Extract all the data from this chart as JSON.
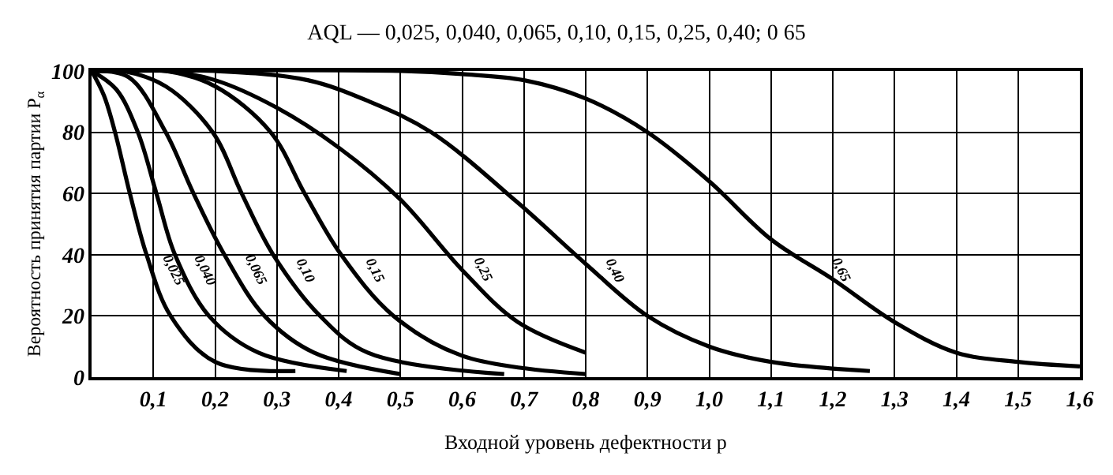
{
  "chart_data": {
    "type": "line",
    "title": "AQL — 0,025, 0,040, 0,065, 0,10, 0,15, 0,25, 0,40; 0 65",
    "xlabel": "Входной уровень дефектности p",
    "ylabel": "Вероятность принятия партии P$_{α}$",
    "xlim": [
      0,
      1.6
    ],
    "ylim": [
      0,
      100
    ],
    "xticks": [
      {
        "value": 0.1,
        "label": "0,1"
      },
      {
        "value": 0.2,
        "label": "0,2"
      },
      {
        "value": 0.3,
        "label": "0,3"
      },
      {
        "value": 0.4,
        "label": "0,4"
      },
      {
        "value": 0.5,
        "label": "0,5"
      },
      {
        "value": 0.6,
        "label": "0,6"
      },
      {
        "value": 0.7,
        "label": "0,7"
      },
      {
        "value": 0.8,
        "label": "0,8"
      },
      {
        "value": 0.9,
        "label": "0,9"
      },
      {
        "value": 1.0,
        "label": "1,0"
      },
      {
        "value": 1.1,
        "label": "1,1"
      },
      {
        "value": 1.2,
        "label": "1,2"
      },
      {
        "value": 1.3,
        "label": "1,3"
      },
      {
        "value": 1.4,
        "label": "1,4"
      },
      {
        "value": 1.5,
        "label": "1,5"
      },
      {
        "value": 1.6,
        "label": "1,6"
      }
    ],
    "yticks": [
      0,
      20,
      40,
      60,
      80,
      100
    ],
    "grid": true,
    "legend": false,
    "marker": "none",
    "line_style": "solid",
    "series": [
      {
        "name": "0,025",
        "color": "#000000",
        "x": [
          0,
          0.02,
          0.038,
          0.062,
          0.089,
          0.128,
          0.2,
          0.33
        ],
        "values": [
          100,
          92,
          80,
          60,
          40,
          20,
          5,
          2
        ]
      },
      {
        "name": "0,040",
        "color": "#000000",
        "x": [
          0,
          0.04,
          0.075,
          0.105,
          0.135,
          0.19,
          0.27,
          0.413
        ],
        "values": [
          100,
          94,
          80,
          60,
          40,
          20,
          8,
          2
        ]
      },
      {
        "name": "0,065",
        "color": "#000000",
        "x": [
          0,
          0.06,
          0.12,
          0.165,
          0.215,
          0.28,
          0.36,
          0.5
        ],
        "values": [
          100,
          98,
          80,
          60,
          40,
          20,
          8,
          1
        ]
      },
      {
        "name": "0,10",
        "color": "#000000",
        "x": [
          0,
          0.05,
          0.12,
          0.196,
          0.243,
          0.294,
          0.37,
          0.447,
          0.668
        ],
        "values": [
          100,
          100,
          95,
          80,
          60,
          40,
          20,
          8,
          1
        ]
      },
      {
        "name": "0,15",
        "color": "#000000",
        "x": [
          0,
          0.12,
          0.2,
          0.29,
          0.345,
          0.404,
          0.489,
          0.6,
          0.8
        ],
        "values": [
          100,
          100,
          95,
          80,
          60,
          40,
          20,
          7,
          1
        ]
      },
      {
        "name": "0,25",
        "color": "#000000",
        "x": [
          0,
          0.12,
          0.2,
          0.3,
          0.4,
          0.5,
          0.6,
          0.69,
          0.8
        ],
        "values": [
          100,
          100,
          97,
          88,
          75,
          58,
          35,
          18,
          8
        ]
      },
      {
        "name": "0,40",
        "color": "#000000",
        "x": [
          0,
          0.2,
          0.35,
          0.45,
          0.55,
          0.69,
          0.8,
          0.9,
          1.0,
          1.1,
          1.26
        ],
        "values": [
          100,
          100,
          97,
          90,
          80,
          57,
          37,
          20,
          10,
          5,
          2
        ]
      },
      {
        "name": "0,65",
        "color": "#000000",
        "x": [
          0,
          0.5,
          0.6,
          0.7,
          0.8,
          0.9,
          1.0,
          1.1,
          1.2,
          1.3,
          1.4,
          1.5,
          1.6
        ],
        "values": [
          100,
          100,
          99,
          97,
          91,
          80,
          64,
          45,
          32,
          18,
          8,
          5,
          3.5
        ]
      }
    ]
  }
}
